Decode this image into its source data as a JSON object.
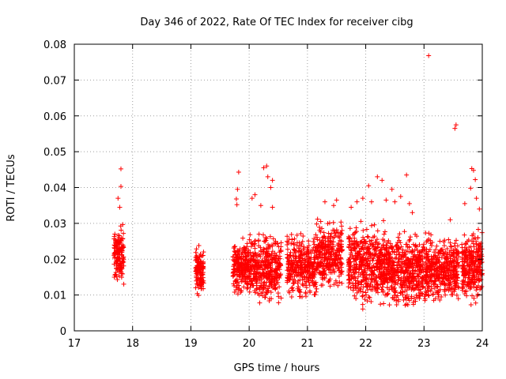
{
  "chart_data": {
    "type": "scatter",
    "title": "Day 346 of 2022, Rate Of TEC Index for receiver cibg",
    "xlabel": "GPS time / hours",
    "ylabel": "ROTI / TECUs",
    "xlim": [
      17,
      24
    ],
    "ylim": [
      0,
      0.08
    ],
    "xticks": [
      "17",
      "18",
      "19",
      "20",
      "21",
      "22",
      "23",
      "24"
    ],
    "yticks": [
      "0",
      "0.01",
      "0.02",
      "0.03",
      "0.04",
      "0.05",
      "0.06",
      "0.07",
      "0.08"
    ],
    "grid": true,
    "marker": "+",
    "color": "#ff0000",
    "clusters": [
      {
        "x0": 17.68,
        "x1": 17.85,
        "y0": 0.011,
        "y1": 0.032,
        "n": 140
      },
      {
        "x0": 19.08,
        "x1": 19.22,
        "y0": 0.008,
        "y1": 0.025,
        "n": 120
      },
      {
        "x0": 19.72,
        "x1": 20.0,
        "y0": 0.009,
        "y1": 0.027,
        "n": 220
      },
      {
        "x0": 20.0,
        "x1": 20.55,
        "y0": 0.006,
        "y1": 0.029,
        "n": 380
      },
      {
        "x0": 20.65,
        "x1": 21.15,
        "y0": 0.007,
        "y1": 0.029,
        "n": 340
      },
      {
        "x0": 21.15,
        "x1": 21.6,
        "y0": 0.01,
        "y1": 0.033,
        "n": 300
      },
      {
        "x0": 21.7,
        "x1": 22.4,
        "y0": 0.005,
        "y1": 0.032,
        "n": 520
      },
      {
        "x0": 22.4,
        "x1": 23.1,
        "y0": 0.004,
        "y1": 0.03,
        "n": 520
      },
      {
        "x0": 23.1,
        "x1": 23.6,
        "y0": 0.006,
        "y1": 0.028,
        "n": 360
      },
      {
        "x0": 23.65,
        "x1": 24.0,
        "y0": 0.006,
        "y1": 0.03,
        "n": 280
      }
    ],
    "highlights": [
      [
        17.8,
        0.0452
      ],
      [
        17.8,
        0.0403
      ],
      [
        17.75,
        0.037
      ],
      [
        17.78,
        0.0345
      ],
      [
        19.82,
        0.0443
      ],
      [
        19.8,
        0.0395
      ],
      [
        19.78,
        0.0368
      ],
      [
        19.79,
        0.0352
      ],
      [
        20.05,
        0.037
      ],
      [
        20.1,
        0.038
      ],
      [
        20.25,
        0.0455
      ],
      [
        20.3,
        0.046
      ],
      [
        20.32,
        0.043
      ],
      [
        20.37,
        0.04
      ],
      [
        20.4,
        0.042
      ],
      [
        20.2,
        0.035
      ],
      [
        20.4,
        0.0345
      ],
      [
        21.3,
        0.036
      ],
      [
        21.45,
        0.035
      ],
      [
        21.5,
        0.0365
      ],
      [
        21.75,
        0.0345
      ],
      [
        21.85,
        0.036
      ],
      [
        21.95,
        0.037
      ],
      [
        22.05,
        0.0405
      ],
      [
        22.1,
        0.036
      ],
      [
        22.2,
        0.043
      ],
      [
        22.28,
        0.042
      ],
      [
        22.35,
        0.0365
      ],
      [
        22.45,
        0.0395
      ],
      [
        22.5,
        0.036
      ],
      [
        22.6,
        0.0375
      ],
      [
        22.7,
        0.0435
      ],
      [
        22.75,
        0.0355
      ],
      [
        22.8,
        0.033
      ],
      [
        23.08,
        0.0768
      ],
      [
        23.55,
        0.0575
      ],
      [
        23.53,
        0.0565
      ],
      [
        23.45,
        0.031
      ],
      [
        23.7,
        0.0355
      ],
      [
        23.8,
        0.0398
      ],
      [
        23.82,
        0.0453
      ],
      [
        23.85,
        0.0448
      ],
      [
        23.88,
        0.0422
      ],
      [
        23.9,
        0.037
      ],
      [
        23.95,
        0.034
      ]
    ]
  }
}
